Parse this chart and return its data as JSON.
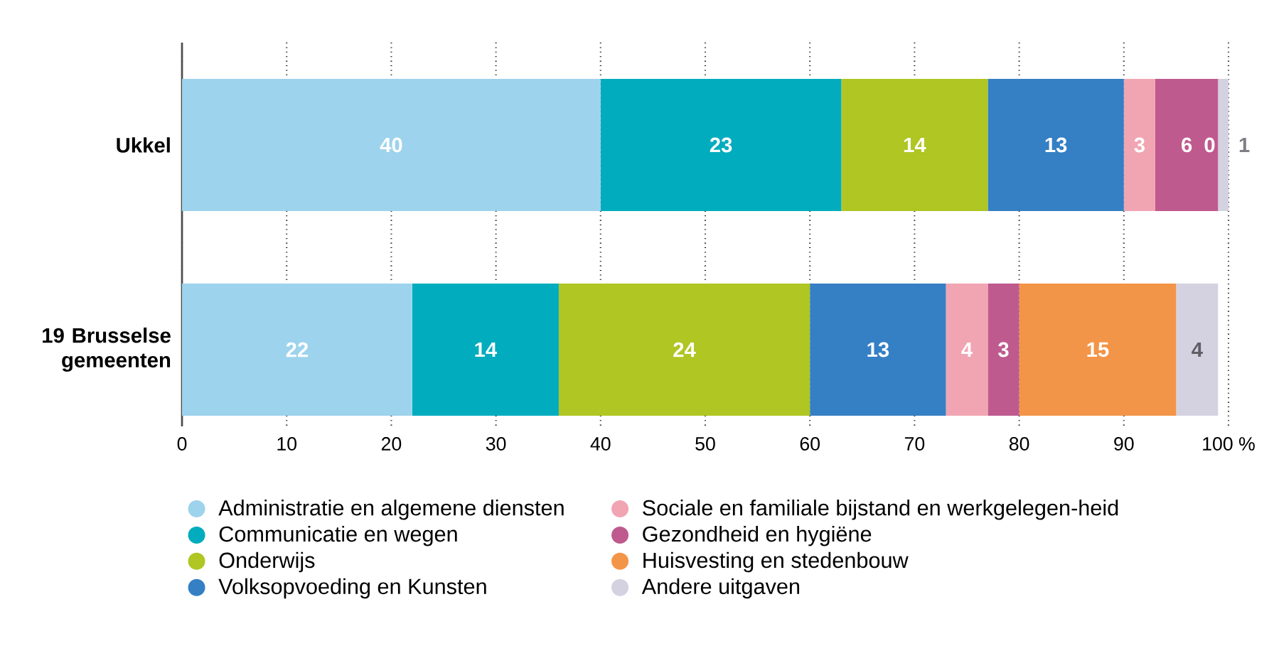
{
  "chart_data": {
    "type": "bar",
    "orientation": "horizontal",
    "stacked": true,
    "categories": [
      "Ukkel",
      "19 Brusselse gemeenten"
    ],
    "series": [
      {
        "name": "Administratie en algemene diensten",
        "color": "#9dd3ec",
        "values": [
          40,
          22
        ]
      },
      {
        "name": "Communicatie en wegen",
        "color": "#00acbd",
        "values": [
          23,
          14
        ]
      },
      {
        "name": "Onderwijs",
        "color": "#afc623",
        "values": [
          14,
          24
        ]
      },
      {
        "name": "Volksopvoeding en Kunsten",
        "color": "#3580c4",
        "values": [
          13,
          13
        ]
      },
      {
        "name": "Sociale en familiale bijstand en werkgelegen-heid",
        "color": "#f1a5b3",
        "values": [
          3,
          4
        ]
      },
      {
        "name": "Gezondheid en hygiëne",
        "color": "#bf5a8e",
        "values": [
          6,
          3
        ]
      },
      {
        "name": "Huisvesting en stedenbouw",
        "color": "#f39548",
        "values": [
          0,
          15
        ]
      },
      {
        "name": "Andere uitgaven",
        "color": "#d4d2e0",
        "values": [
          1,
          4
        ]
      }
    ],
    "xlim": [
      0,
      100
    ],
    "xticks": [
      0,
      10,
      20,
      30,
      40,
      50,
      60,
      70,
      80,
      90,
      {
        "value": 100,
        "label": "100 %"
      }
    ],
    "grid": "x",
    "legend": "bottom",
    "data_labels": true
  }
}
